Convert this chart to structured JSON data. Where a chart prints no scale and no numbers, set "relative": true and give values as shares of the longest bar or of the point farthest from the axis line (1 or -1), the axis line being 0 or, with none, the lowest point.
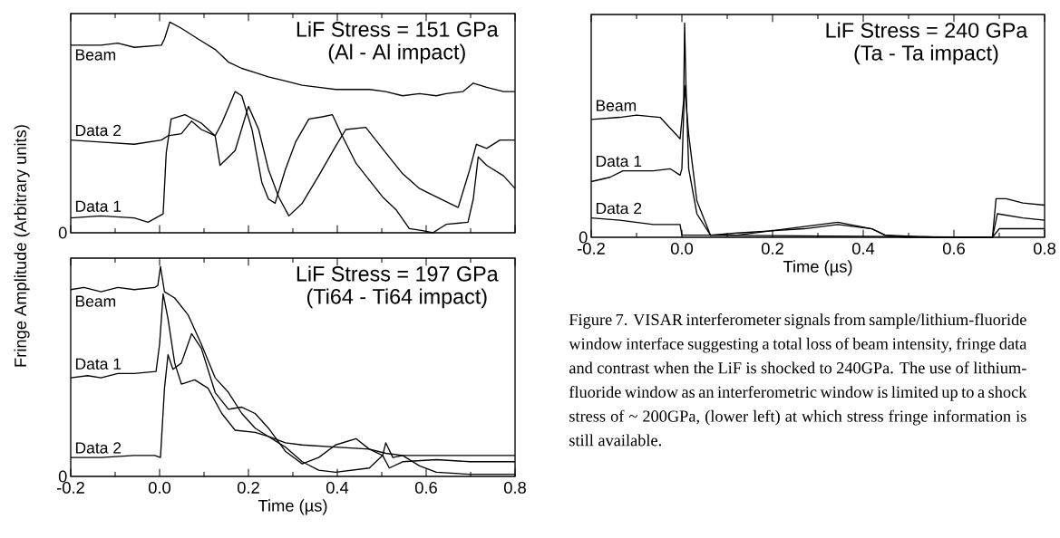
{
  "chart_data": [
    {
      "type": "line",
      "title": "LiF Stress = 151 GPa",
      "subtitle": "(Al - Al impact)",
      "ylabel": "Fringe Amplitude (Arbitrary units)",
      "relative": true,
      "legend": false,
      "grid": false,
      "tick_labels": false,
      "xlim": [
        -0.2,
        0.8
      ],
      "xticks": [
        {
          "value": -0.2,
          "label": null
        },
        {
          "value": 0,
          "label": null
        },
        {
          "value": 0.2,
          "label": null
        },
        {
          "value": 0.4,
          "label": null
        },
        {
          "value": 0.6,
          "label": null
        },
        {
          "value": 0.8,
          "label": null
        }
      ],
      "annotations": [
        "0"
      ],
      "series": [
        {
          "name": "Beam",
          "color": "#000000",
          "x": [
            -0.2,
            -0.132,
            -0.094,
            -0.057,
            0.004,
            0.011,
            0.023,
            0.049,
            0.094,
            0.125,
            0.155,
            0.185,
            0.215,
            0.245,
            0.283,
            0.321,
            0.358,
            0.396,
            0.434,
            0.472,
            0.509,
            0.547,
            0.585,
            0.623,
            0.645,
            0.683,
            0.706,
            0.736,
            0.774,
            0.8
          ],
          "values": [
            0.89,
            0.89,
            0.9,
            0.88,
            0.89,
            0.92,
            1.0,
            0.97,
            0.91,
            0.87,
            0.81,
            0.78,
            0.76,
            0.74,
            0.72,
            0.7,
            0.69,
            0.68,
            0.68,
            0.68,
            0.67,
            0.65,
            0.66,
            0.65,
            0.66,
            0.67,
            0.71,
            0.69,
            0.67,
            0.67
          ]
        },
        {
          "name": "Data 2",
          "color": "#000000",
          "x": [
            -0.2,
            -0.132,
            -0.057,
            0.004,
            0.019,
            0.049,
            0.072,
            0.094,
            0.125,
            0.14,
            0.17,
            0.185,
            0.208,
            0.23,
            0.245,
            0.26,
            0.283,
            0.306,
            0.336,
            0.366,
            0.389,
            0.411,
            0.442,
            0.472,
            0.502,
            0.532,
            0.562,
            0.592,
            0.615,
            0.645,
            0.694,
            0.706,
            0.717,
            0.736,
            0.774,
            0.8
          ],
          "values": [
            0.44,
            0.43,
            0.42,
            0.44,
            0.46,
            0.47,
            0.53,
            0.49,
            0.46,
            0.52,
            0.67,
            0.65,
            0.49,
            0.24,
            0.16,
            0.14,
            0.3,
            0.43,
            0.54,
            0.55,
            0.56,
            0.46,
            0.33,
            0.25,
            0.17,
            0.11,
            0.02,
            0.01,
            0.0,
            0.04,
            0.05,
            0.16,
            0.36,
            0.32,
            0.27,
            0.21
          ]
        },
        {
          "name": "Data 1",
          "color": "#000000",
          "x": [
            -0.2,
            -0.132,
            -0.057,
            -0.026,
            0.008,
            0.015,
            0.026,
            0.057,
            0.094,
            0.125,
            0.136,
            0.17,
            0.2,
            0.223,
            0.245,
            0.268,
            0.291,
            0.321,
            0.358,
            0.396,
            0.419,
            0.464,
            0.509,
            0.547,
            0.585,
            0.623,
            0.672,
            0.698,
            0.713,
            0.736,
            0.766,
            0.8
          ],
          "values": [
            0.07,
            0.08,
            0.07,
            0.05,
            0.09,
            0.38,
            0.54,
            0.56,
            0.52,
            0.46,
            0.32,
            0.39,
            0.6,
            0.49,
            0.3,
            0.17,
            0.08,
            0.14,
            0.27,
            0.41,
            0.49,
            0.5,
            0.38,
            0.28,
            0.21,
            0.17,
            0.12,
            0.3,
            0.42,
            0.4,
            0.44,
            0.44
          ]
        }
      ]
    },
    {
      "type": "line",
      "title": "LiF Stress = 197 GPa",
      "subtitle": "(Ti64 - Ti64 impact)",
      "xlabel": "Time (µs)",
      "relative": true,
      "legend": false,
      "grid": false,
      "tick_labels": "x",
      "xlim": [
        -0.2,
        0.8
      ],
      "xticks": [
        -0.2,
        {
          "value": 0,
          "label": "0.0"
        },
        0.2,
        0.4,
        0.6,
        0.8
      ],
      "annotations": [
        "0"
      ],
      "series": [
        {
          "name": "Beam",
          "color": "#000000",
          "x": [
            -0.2,
            -0.17,
            -0.132,
            -0.094,
            -0.057,
            -0.011,
            -0.004,
            0.002,
            0.011,
            0.034,
            0.064,
            0.094,
            0.125,
            0.155,
            0.185,
            0.215,
            0.245,
            0.283,
            0.321,
            0.396,
            0.472,
            0.509,
            0.547,
            0.623,
            0.698,
            0.8
          ],
          "values": [
            0.89,
            0.9,
            0.88,
            0.9,
            0.89,
            0.9,
            0.91,
            1.0,
            0.88,
            0.85,
            0.77,
            0.63,
            0.47,
            0.4,
            0.3,
            0.23,
            0.19,
            0.16,
            0.15,
            0.14,
            0.13,
            0.11,
            0.1,
            0.1,
            0.1,
            0.1
          ]
        },
        {
          "name": "Data 1",
          "color": "#000000",
          "x": [
            -0.2,
            -0.162,
            -0.132,
            -0.094,
            -0.057,
            -0.008,
            0.0,
            0.008,
            0.019,
            0.034,
            0.049,
            0.079,
            0.109,
            0.14,
            0.17,
            0.215,
            0.245,
            0.283,
            0.321,
            0.358,
            0.396,
            0.472,
            0.502,
            0.517,
            0.547,
            0.623,
            0.698,
            0.8
          ],
          "values": [
            0.47,
            0.48,
            0.47,
            0.49,
            0.49,
            0.5,
            0.63,
            0.87,
            0.75,
            0.54,
            0.44,
            0.46,
            0.42,
            0.3,
            0.22,
            0.21,
            0.19,
            0.14,
            0.07,
            0.03,
            0.02,
            0.04,
            0.1,
            0.04,
            0.07,
            0.08,
            0.07,
            0.07
          ]
        },
        {
          "name": "Data 2",
          "color": "#000000",
          "x": [
            -0.2,
            -0.132,
            -0.057,
            -0.011,
            0.002,
            0.011,
            0.019,
            0.03,
            0.049,
            0.072,
            0.094,
            0.125,
            0.155,
            0.185,
            0.215,
            0.245,
            0.283,
            0.321,
            0.358,
            0.396,
            0.442,
            0.472,
            0.502,
            0.509,
            0.525,
            0.547,
            0.585,
            0.623,
            0.698,
            0.8
          ],
          "values": [
            0.09,
            0.09,
            0.1,
            0.1,
            0.09,
            0.42,
            0.58,
            0.51,
            0.54,
            0.68,
            0.61,
            0.4,
            0.32,
            0.33,
            0.3,
            0.23,
            0.12,
            0.06,
            0.09,
            0.15,
            0.18,
            0.13,
            0.1,
            0.16,
            0.09,
            0.1,
            0.05,
            0.02,
            0.01,
            0.01
          ]
        }
      ]
    },
    {
      "type": "line",
      "title": "LiF Stress = 240 GPa",
      "subtitle": "(Ta - Ta impact)",
      "xlabel": "Time (µs)",
      "relative": true,
      "legend": false,
      "grid": false,
      "tick_labels": "x",
      "xlim": [
        -0.2,
        0.8
      ],
      "xticks": [
        -0.2,
        {
          "value": 0,
          "label": "0.0"
        },
        0.2,
        0.4,
        0.6,
        0.8
      ],
      "annotations": [
        "0",
        "Figure 7. VISAR interferometer signals from sample/lithium-fluoride window interface suggesting a total loss of beam intensity, fringe data and contrast when the LiF is shocked to 240GPa. The use of lithium-fluoride window as an interferometric window is limited up to a shock stress of ~ 200GPa, (lower left) at which stress fringe information is still available."
      ],
      "series": [
        {
          "name": "Beam",
          "color": "#000000",
          "x": [
            -0.2,
            -0.137,
            -0.1,
            -0.048,
            -0.026,
            -0.004,
            0.004,
            0.006,
            0.009,
            0.015,
            0.033,
            0.063,
            0.122,
            0.196,
            0.27,
            0.344,
            0.419,
            0.448,
            0.493,
            0.567,
            0.685,
            0.693,
            0.715,
            0.752,
            0.8
          ],
          "values": [
            0.55,
            0.56,
            0.57,
            0.56,
            0.51,
            0.46,
            0.64,
            1.0,
            0.71,
            0.32,
            0.11,
            0.01,
            0.01,
            0.03,
            0.04,
            0.06,
            0.04,
            0.01,
            0.0,
            0.0,
            0.0,
            0.18,
            0.18,
            0.16,
            0.15
          ]
        },
        {
          "name": "Data 1",
          "color": "#000000",
          "x": [
            -0.2,
            -0.159,
            -0.13,
            -0.063,
            -0.026,
            -0.004,
            0.0,
            0.006,
            0.015,
            0.033,
            0.063,
            0.122,
            0.196,
            0.27,
            0.344,
            0.419,
            0.448,
            0.567,
            0.685,
            0.696,
            0.752,
            0.8
          ],
          "values": [
            0.26,
            0.28,
            0.31,
            0.31,
            0.32,
            0.29,
            0.32,
            0.71,
            0.48,
            0.17,
            0.01,
            0.02,
            0.03,
            0.05,
            0.07,
            0.04,
            0.01,
            0.0,
            0.0,
            0.11,
            0.09,
            0.08
          ]
        },
        {
          "name": "Data 2",
          "color": "#000000",
          "x": [
            -0.2,
            -0.137,
            -0.063,
            -0.004,
            0.0,
            0.048,
            0.685,
            0.7,
            0.8
          ],
          "values": [
            0.09,
            0.08,
            0.06,
            0.06,
            0.01,
            0.01,
            0.0,
            0.04,
            0.04
          ]
        }
      ]
    }
  ]
}
